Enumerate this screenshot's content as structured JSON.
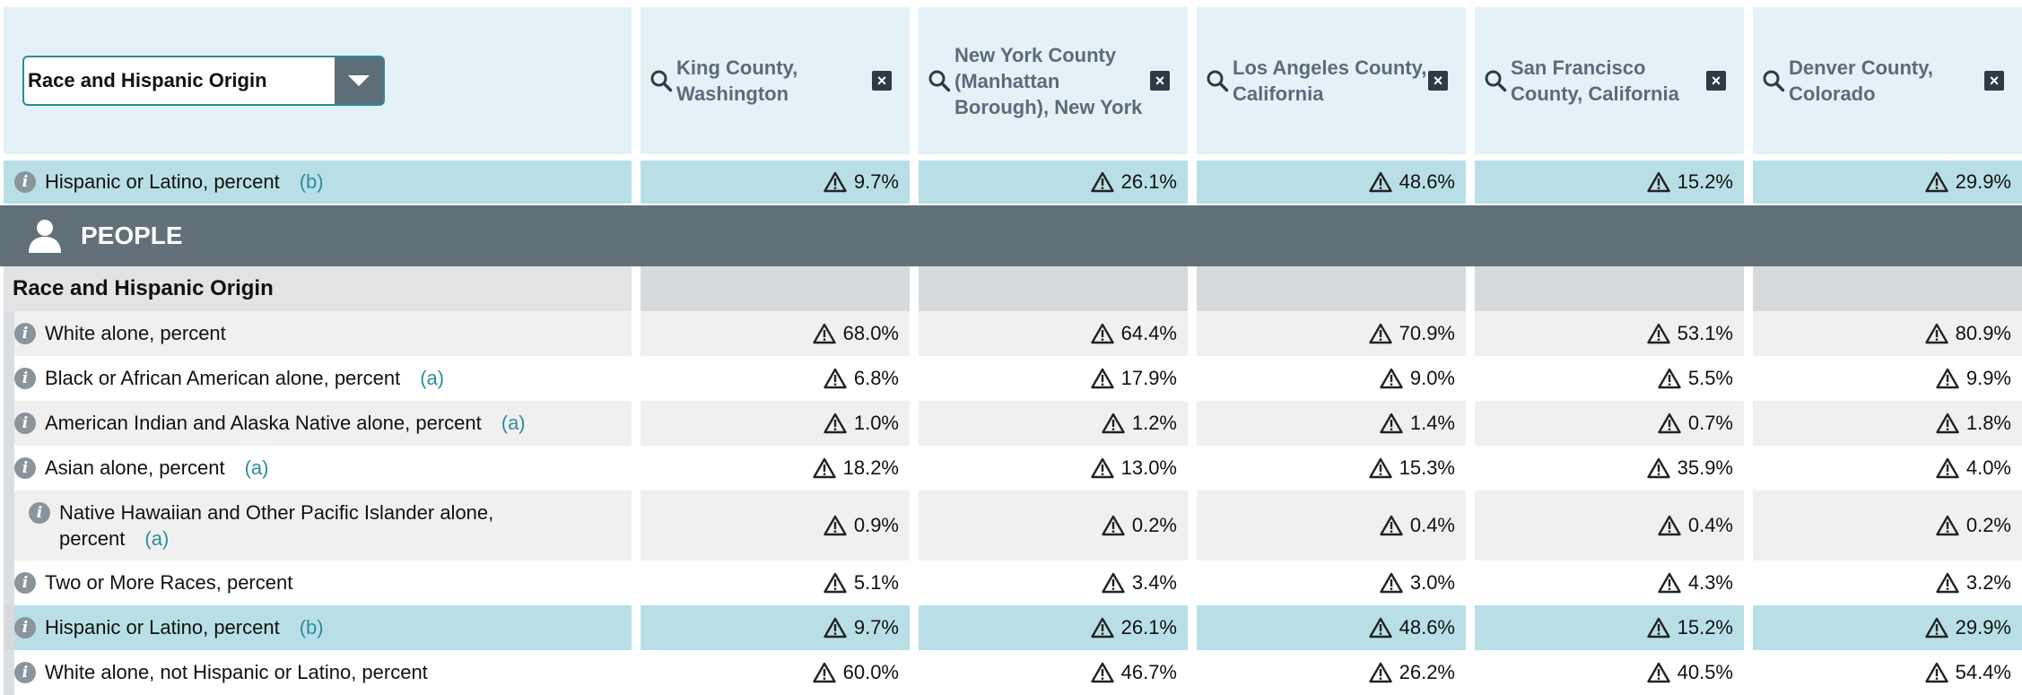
{
  "topic_select": {
    "value": "Race and Hispanic Origin"
  },
  "columns": [
    {
      "name": "King County, Washington"
    },
    {
      "name": "New York County (Manhattan Borough), New York"
    },
    {
      "name": "Los Angeles County, California"
    },
    {
      "name": "San Francisco County, California"
    },
    {
      "name": "Denver County, Colorado"
    }
  ],
  "top_row": {
    "label": "Hispanic or Latino, percent",
    "note": "(b)",
    "values": [
      "9.7%",
      "26.1%",
      "48.6%",
      "15.2%",
      "29.9%"
    ]
  },
  "section_bar": {
    "label": "PEOPLE"
  },
  "subsection": {
    "label": "Race and Hispanic Origin"
  },
  "rows": [
    {
      "label": "White alone, percent",
      "note": "",
      "values": [
        "68.0%",
        "64.4%",
        "70.9%",
        "53.1%",
        "80.9%"
      ]
    },
    {
      "label": "Black or African American alone, percent",
      "note": "(a)",
      "values": [
        "6.8%",
        "17.9%",
        "9.0%",
        "5.5%",
        "9.9%"
      ]
    },
    {
      "label": "American Indian and Alaska Native alone, percent",
      "note": "(a)",
      "values": [
        "1.0%",
        "1.2%",
        "1.4%",
        "0.7%",
        "1.8%"
      ]
    },
    {
      "label": "Asian alone, percent",
      "note": "(a)",
      "values": [
        "18.2%",
        "13.0%",
        "15.3%",
        "35.9%",
        "4.0%"
      ]
    },
    {
      "label_line1": "Native Hawaiian and Other Pacific Islander alone,",
      "label_line2": "percent",
      "note": "(a)",
      "values": [
        "0.9%",
        "0.2%",
        "0.4%",
        "0.4%",
        "0.2%"
      ]
    },
    {
      "label": "Two or More Races, percent",
      "note": "",
      "values": [
        "5.1%",
        "3.4%",
        "3.0%",
        "4.3%",
        "3.2%"
      ]
    },
    {
      "label": "Hispanic or Latino, percent",
      "note": "(b)",
      "values": [
        "9.7%",
        "26.1%",
        "48.6%",
        "15.2%",
        "29.9%"
      ]
    },
    {
      "label": "White alone, not Hispanic or Latino, percent",
      "note": "",
      "values": [
        "60.0%",
        "46.7%",
        "26.2%",
        "40.5%",
        "54.4%"
      ]
    }
  ],
  "colors": {
    "accent": "#2e8c9a",
    "band": "#b9dfe6",
    "header_bg": "#e4f2f8",
    "section_bar": "#617079"
  }
}
